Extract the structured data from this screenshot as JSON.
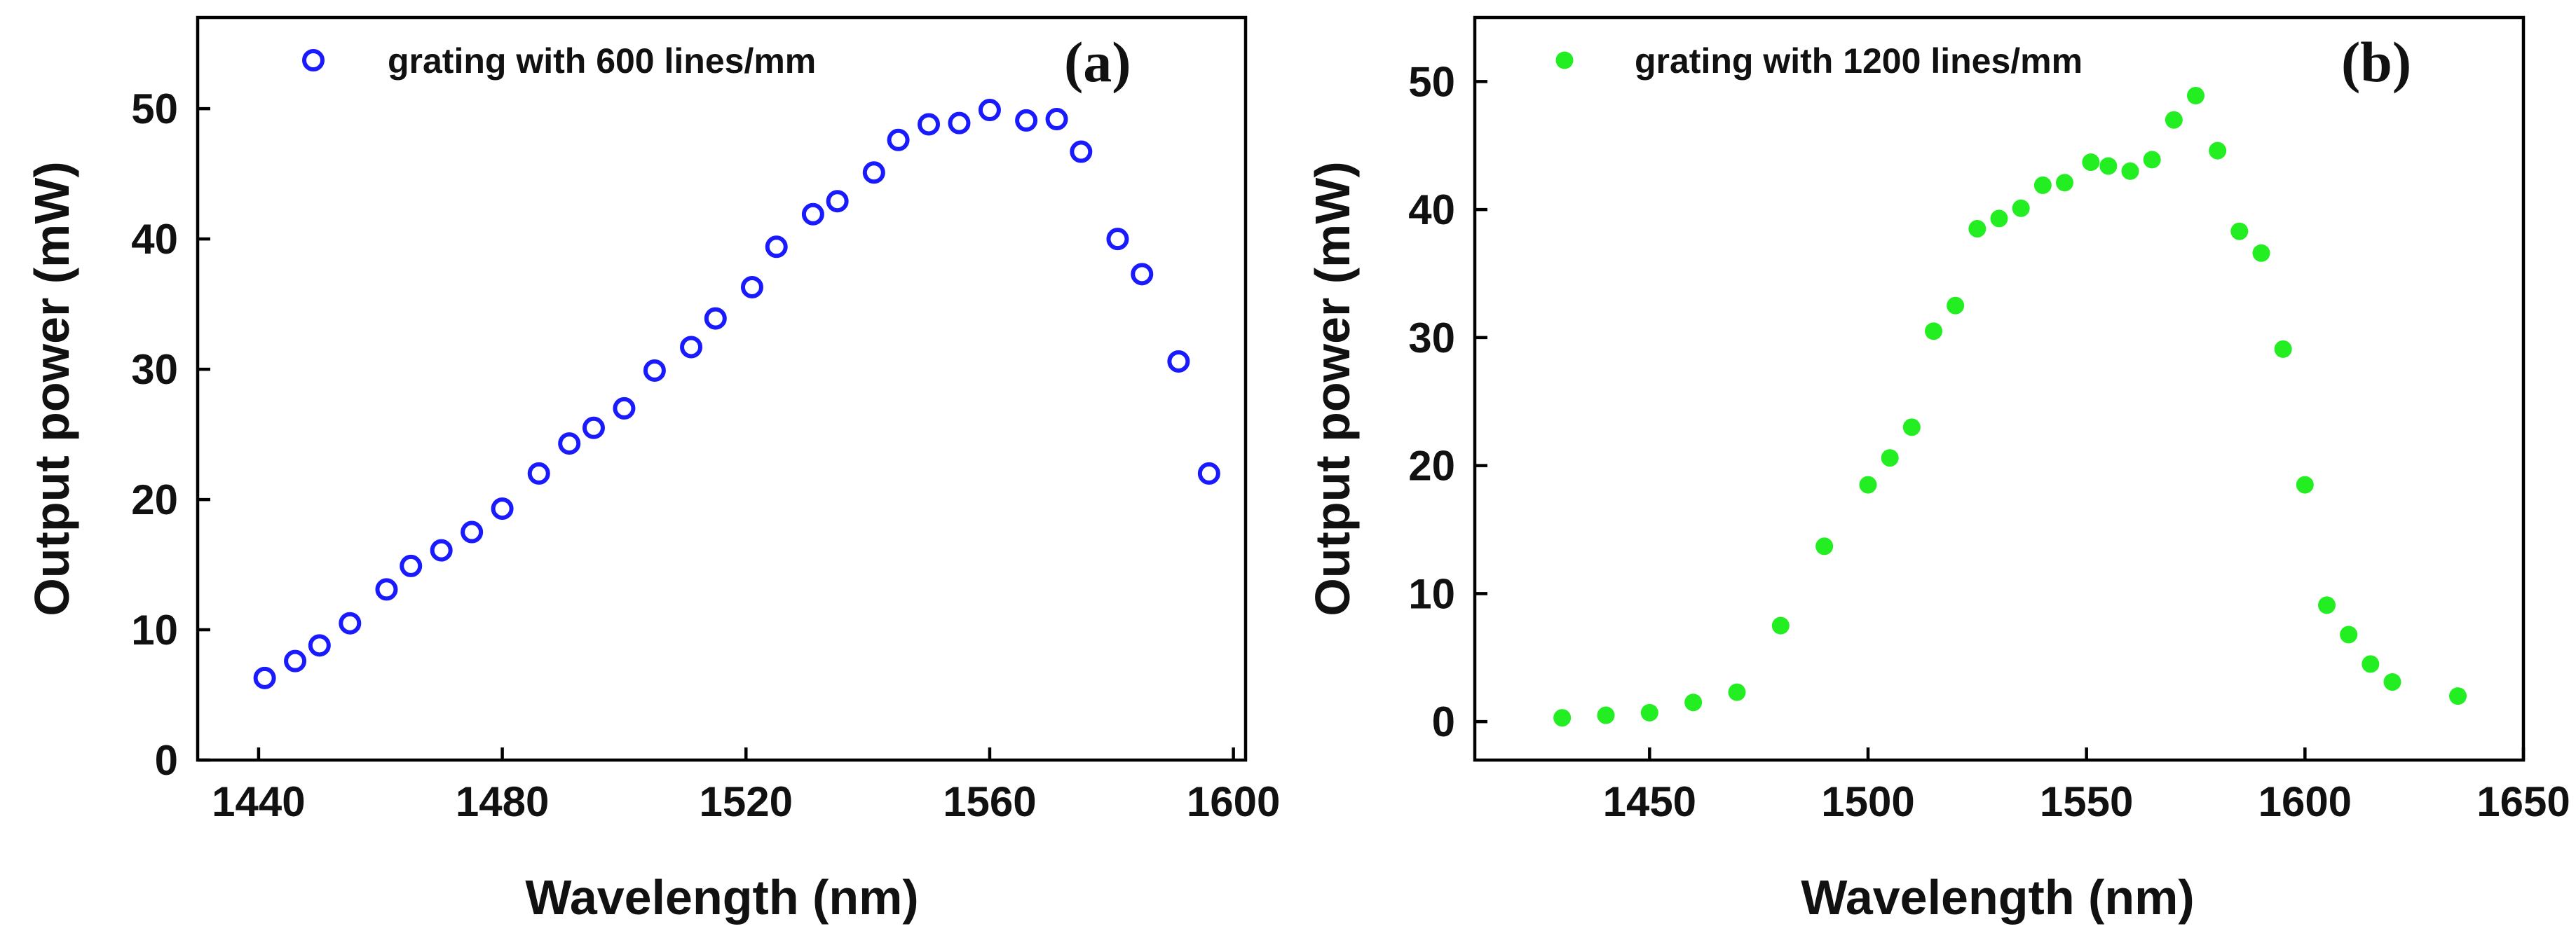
{
  "chart_data": [
    {
      "type": "scatter",
      "panel_label": "(a)",
      "legend": "grating with 600 lines/mm",
      "legend_placement": "top-left",
      "xlabel": "Wavelength (nm)",
      "ylabel": "Output power (mW)",
      "xlim": [
        1430,
        1602
      ],
      "ylim": [
        0,
        57
      ],
      "xticks": [
        "1440",
        "1480",
        "1520",
        "1560",
        "1600"
      ],
      "yticks": [
        "0",
        "10",
        "20",
        "30",
        "40",
        "50"
      ],
      "marker": "open-circle",
      "color": "#1a1aff",
      "x": [
        1441,
        1446,
        1450,
        1455,
        1461,
        1465,
        1470,
        1475,
        1480,
        1486,
        1491,
        1495,
        1500,
        1505,
        1511,
        1515,
        1521,
        1525,
        1531,
        1535,
        1541,
        1545,
        1550,
        1555,
        1560,
        1566,
        1571,
        1575,
        1581,
        1585,
        1591,
        1596
      ],
      "y": [
        6.3,
        7.6,
        8.8,
        10.5,
        13.1,
        14.9,
        16.1,
        17.5,
        19.3,
        22.0,
        24.3,
        25.5,
        27.0,
        29.9,
        31.7,
        33.9,
        36.3,
        39.4,
        41.9,
        42.9,
        45.1,
        47.6,
        48.8,
        48.9,
        49.9,
        49.1,
        49.2,
        46.7,
        40.0,
        37.3,
        30.6,
        22.0
      ]
    },
    {
      "type": "scatter",
      "panel_label": "(b)",
      "legend": "grating with 1200 lines/mm",
      "legend_placement": "top-left",
      "xlabel": "Wavelength (nm)",
      "ylabel": "Output power (mW)",
      "xlim": [
        1410,
        1650
      ],
      "ylim": [
        -3,
        55
      ],
      "xticks": [
        "1450",
        "1500",
        "1550",
        "1600",
        "1650"
      ],
      "yticks": [
        "0",
        "10",
        "20",
        "30",
        "40",
        "50"
      ],
      "marker": "filled-circle",
      "color": "#22ee22",
      "x": [
        1430,
        1440,
        1450,
        1460,
        1470,
        1480,
        1490,
        1500,
        1505,
        1510,
        1515,
        1520,
        1525,
        1530,
        1535,
        1540,
        1545,
        1551,
        1555,
        1560,
        1565,
        1570,
        1575,
        1580,
        1585,
        1590,
        1595,
        1600,
        1605,
        1610,
        1615,
        1620,
        1635
      ],
      "y": [
        0.3,
        0.5,
        0.7,
        1.5,
        2.3,
        7.5,
        13.7,
        18.5,
        20.6,
        23.0,
        30.5,
        32.5,
        38.5,
        39.3,
        40.1,
        41.9,
        42.1,
        43.7,
        43.4,
        43.0,
        43.9,
        47.0,
        48.9,
        44.6,
        38.3,
        36.6,
        29.1,
        18.5,
        9.1,
        6.8,
        4.5,
        3.1,
        2.0
      ]
    }
  ]
}
